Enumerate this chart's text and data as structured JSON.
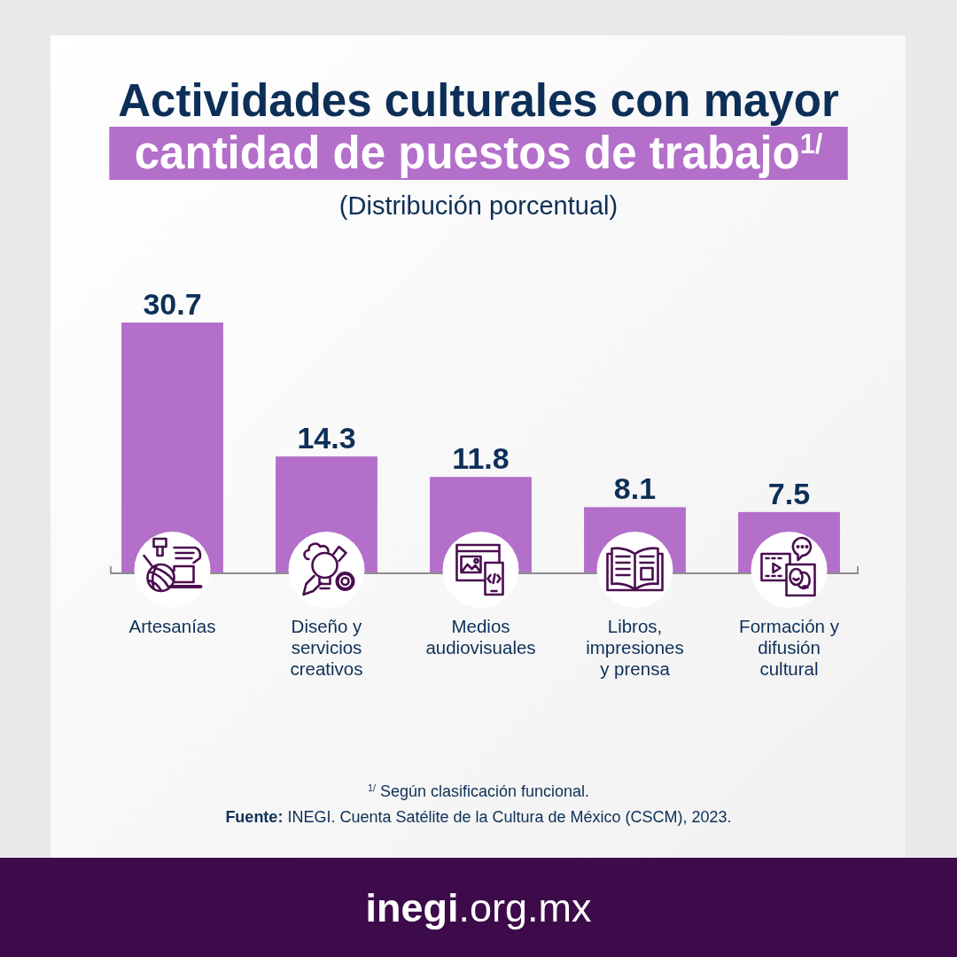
{
  "chart_data": {
    "type": "bar",
    "title": "Actividades culturales con mayor cantidad de puestos de trabajo$^{1/}$",
    "subtitle": "(Distribución porcentual)",
    "categories": [
      "Artesanías",
      "Diseño y servicios creativos",
      "Medios audiovisuales",
      "Libros, impresiones y prensa",
      "Formación y difusión cultural"
    ],
    "values": [
      30.7,
      14.3,
      11.8,
      8.1,
      7.5
    ],
    "color": "#b36fca",
    "data_labels": true,
    "annotations": [
      "$^{1/}$ Según clasificación funcional.",
      "Fuente: INEGI. Cuenta Satélite de la Cultura de México (CSCM), 2023.",
      "inegi.org.mx"
    ]
  }
}
